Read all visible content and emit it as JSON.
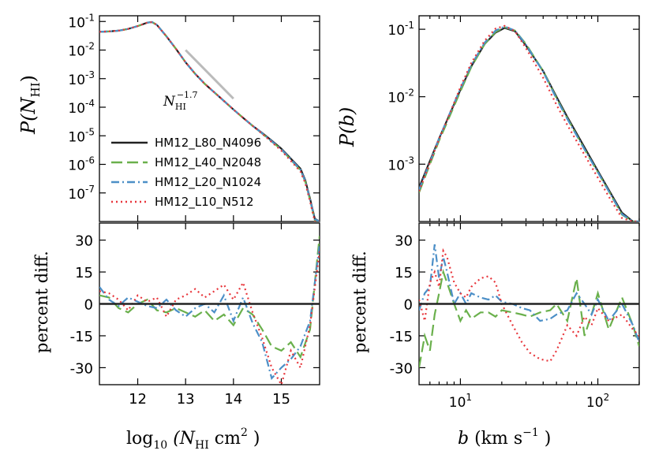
{
  "styles": {
    "colors": {
      "HM12_L80_N4096": "#222222",
      "HM12_L40_N2048": "#6ab04c",
      "HM12_L20_N1024": "#4c8fc7",
      "HM12_L10_N512": "#e8363c",
      "reference": "#bbbbbb"
    },
    "dashes": {
      "HM12_L80_N4096": "",
      "HM12_L40_N2048": "14,6",
      "HM12_L20_N1024": "10,4,2,4",
      "HM12_L10_N512": "2,4"
    }
  },
  "chart_data": [
    {
      "type": "line",
      "panel": "top-left",
      "ylabel": "P(N_HI)",
      "xlim": [
        11.2,
        15.8
      ],
      "ylim_log10": [
        -8,
        -0.8
      ],
      "yscale": "log",
      "yticks": [
        "10^-1",
        "10^-2",
        "10^-3",
        "10^-4",
        "10^-5",
        "10^-6",
        "10^-7"
      ],
      "annotation": "N_HI^-1.7",
      "legend": [
        "HM12_L80_N4096",
        "HM12_L40_N2048",
        "HM12_L20_N1024",
        "HM12_L10_N512"
      ],
      "legend_position": "lower-left",
      "x": [
        11.2,
        11.4,
        11.6,
        11.8,
        12.0,
        12.2,
        12.3,
        12.4,
        12.6,
        12.8,
        13.0,
        13.2,
        13.4,
        13.6,
        13.8,
        14.0,
        14.2,
        14.4,
        14.6,
        14.8,
        15.0,
        15.2,
        15.4,
        15.5,
        15.6,
        15.7,
        15.8
      ],
      "series": [
        {
          "name": "HM12_L80_N4096",
          "log10_values": [
            -1.36,
            -1.35,
            -1.32,
            -1.26,
            -1.16,
            -1.04,
            -1.02,
            -1.12,
            -1.52,
            -1.96,
            -2.43,
            -2.83,
            -3.18,
            -3.48,
            -3.78,
            -4.08,
            -4.37,
            -4.65,
            -4.9,
            -5.17,
            -5.45,
            -5.8,
            -6.15,
            -6.55,
            -7.2,
            -7.9,
            -8.0
          ]
        },
        {
          "name": "HM12_L40_N2048",
          "log10_values": [
            -1.36,
            -1.35,
            -1.32,
            -1.26,
            -1.16,
            -1.04,
            -1.02,
            -1.12,
            -1.52,
            -1.96,
            -2.43,
            -2.83,
            -3.18,
            -3.48,
            -3.78,
            -4.08,
            -4.37,
            -4.65,
            -4.92,
            -5.2,
            -5.48,
            -5.84,
            -6.2,
            -6.6,
            -7.25,
            -7.95,
            -8.0
          ]
        },
        {
          "name": "HM12_L20_N1024",
          "log10_values": [
            -1.36,
            -1.35,
            -1.32,
            -1.26,
            -1.16,
            -1.04,
            -1.02,
            -1.12,
            -1.52,
            -1.96,
            -2.43,
            -2.83,
            -3.18,
            -3.48,
            -3.78,
            -4.08,
            -4.37,
            -4.65,
            -4.91,
            -5.19,
            -5.47,
            -5.82,
            -6.18,
            -6.58,
            -7.22,
            -7.92,
            -8.0
          ]
        },
        {
          "name": "HM12_L10_N512",
          "log10_values": [
            -1.36,
            -1.35,
            -1.32,
            -1.26,
            -1.16,
            -1.04,
            -1.02,
            -1.12,
            -1.52,
            -1.96,
            -2.43,
            -2.83,
            -3.18,
            -3.48,
            -3.78,
            -4.08,
            -4.37,
            -4.65,
            -4.93,
            -5.22,
            -5.52,
            -5.88,
            -6.25,
            -6.65,
            -7.3,
            -8.0,
            -8.0
          ]
        }
      ],
      "reference_line": {
        "x": [
          13.0,
          14.0
        ],
        "log10_values": [
          -2.0,
          -3.7
        ]
      }
    },
    {
      "type": "line",
      "panel": "bottom-left",
      "xlabel": "log10 (N_HI cm^2 )",
      "ylabel": "percent diff.",
      "xlim": [
        11.2,
        15.8
      ],
      "ylim": [
        -38,
        38
      ],
      "xticks": [
        "12",
        "13",
        "14",
        "15"
      ],
      "yticks": [
        "30",
        "15",
        "0",
        "-15",
        "-30"
      ],
      "zero_line": true,
      "x": [
        11.2,
        11.4,
        11.6,
        11.8,
        12.0,
        12.2,
        12.4,
        12.6,
        12.8,
        13.0,
        13.2,
        13.4,
        13.6,
        13.8,
        14.0,
        14.2,
        14.4,
        14.6,
        14.8,
        15.0,
        15.2,
        15.4,
        15.6,
        15.8
      ],
      "series": [
        {
          "name": "HM12_L40_N2048",
          "values": [
            4,
            3,
            -2,
            -4,
            0,
            2,
            -3,
            -4,
            -2,
            -4,
            -6,
            -3,
            -8,
            -5,
            -10,
            -2,
            -5,
            -12,
            -20,
            -22,
            -18,
            -25,
            -12,
            32
          ]
        },
        {
          "name": "HM12_L20_N1024",
          "values": [
            8,
            2,
            -1,
            3,
            1,
            -1,
            -2,
            2,
            -3,
            -6,
            -2,
            0,
            -4,
            4,
            -8,
            3,
            -9,
            -18,
            -35,
            -30,
            -26,
            -20,
            -8,
            28
          ]
        },
        {
          "name": "HM12_L10_N512",
          "values": [
            6,
            5,
            2,
            -3,
            4,
            1,
            3,
            -6,
            2,
            4,
            7,
            3,
            6,
            9,
            2,
            10,
            -4,
            -16,
            -30,
            -38,
            -22,
            -30,
            -10,
            25
          ]
        }
      ]
    },
    {
      "type": "line",
      "panel": "top-right",
      "ylabel": "P(b)",
      "xscale": "log",
      "yscale": "log",
      "xlim": [
        5,
        200
      ],
      "ylim_log10": [
        -3.85,
        -0.8
      ],
      "yticks": [
        "10^-1",
        "10^-2",
        "10^-3"
      ],
      "b": [
        5,
        6,
        7,
        8,
        10,
        12,
        15,
        18,
        21,
        25,
        30,
        40,
        50,
        60,
        80,
        100,
        120,
        150,
        180,
        200
      ],
      "series": [
        {
          "name": "HM12_L80_N4096",
          "log10_values": [
            -3.35,
            -2.95,
            -2.62,
            -2.35,
            -1.9,
            -1.55,
            -1.22,
            -1.05,
            -0.98,
            -1.03,
            -1.24,
            -1.62,
            -2.0,
            -2.3,
            -2.75,
            -3.1,
            -3.38,
            -3.72,
            -3.85,
            -3.85
          ]
        },
        {
          "name": "HM12_L40_N2048",
          "log10_values": [
            -3.42,
            -3.0,
            -2.65,
            -2.38,
            -1.92,
            -1.56,
            -1.22,
            -1.04,
            -0.97,
            -1.02,
            -1.22,
            -1.62,
            -2.02,
            -2.32,
            -2.78,
            -3.12,
            -3.4,
            -3.75,
            -3.85,
            -3.85
          ]
        },
        {
          "name": "HM12_L20_N1024",
          "log10_values": [
            -3.38,
            -2.97,
            -2.62,
            -2.34,
            -1.88,
            -1.53,
            -1.2,
            -1.02,
            -0.96,
            -1.02,
            -1.23,
            -1.63,
            -2.03,
            -2.33,
            -2.78,
            -3.12,
            -3.4,
            -3.74,
            -3.85,
            -3.85
          ]
        },
        {
          "name": "HM12_L10_N512",
          "log10_values": [
            -3.4,
            -2.98,
            -2.63,
            -2.35,
            -1.86,
            -1.5,
            -1.17,
            -0.99,
            -0.95,
            -1.03,
            -1.28,
            -1.72,
            -2.12,
            -2.42,
            -2.86,
            -3.2,
            -3.48,
            -3.8,
            -3.85,
            -3.85
          ]
        }
      ]
    },
    {
      "type": "line",
      "panel": "bottom-right",
      "xlabel": "b  (km s^-1 )",
      "ylabel": "percent diff.",
      "xscale": "log",
      "xlim": [
        5,
        200
      ],
      "ylim": [
        -38,
        38
      ],
      "xticks": [
        "10^1",
        "10^2"
      ],
      "yticks": [
        "30",
        "15",
        "0",
        "-15",
        "-30"
      ],
      "zero_line": true,
      "b": [
        5,
        5.5,
        6,
        6.5,
        7,
        7.5,
        8,
        9,
        10,
        11,
        12,
        14,
        16,
        18,
        20,
        24,
        28,
        32,
        38,
        45,
        50,
        60,
        70,
        80,
        90,
        100,
        120,
        150,
        180,
        200
      ],
      "series": [
        {
          "name": "HM12_L40_N2048",
          "values": [
            -30,
            -15,
            -22,
            -5,
            5,
            15,
            10,
            0,
            -8,
            -3,
            -7,
            -4,
            -4,
            -6,
            -3,
            -4,
            -5,
            -6,
            -4,
            -3,
            0,
            -8,
            12,
            -15,
            -5,
            5,
            -12,
            3,
            -10,
            -20
          ]
        },
        {
          "name": "HM12_L20_N1024",
          "values": [
            -3,
            5,
            8,
            28,
            12,
            22,
            15,
            0,
            5,
            0,
            5,
            3,
            2,
            4,
            1,
            0,
            -2,
            -3,
            -8,
            -7,
            -5,
            -3,
            5,
            0,
            -5,
            2,
            -8,
            0,
            -10,
            -18
          ]
        },
        {
          "name": "HM12_L10_N512",
          "values": [
            2,
            -8,
            10,
            15,
            8,
            25,
            22,
            10,
            5,
            3,
            8,
            12,
            13,
            10,
            0,
            -10,
            -18,
            -23,
            -26,
            -27,
            -22,
            -10,
            -15,
            -6,
            -10,
            -2,
            -8,
            -5,
            -12,
            -15
          ]
        }
      ]
    }
  ],
  "text": {
    "top_left_ylabel": "P(N",
    "top_left_ylabel_sub": "HI",
    "top_left_ylabel_close": ")",
    "annotation_base": "N",
    "annotation_sub": "HI",
    "annotation_sup": "−1.7",
    "bottom_left_ylabel": "percent diff.",
    "bottom_right_ylabel": "percent diff.",
    "top_right_ylabel": "P(b)",
    "xlabel_left_a": "log",
    "xlabel_left_sub": "10",
    "xlabel_left_b": " (N",
    "xlabel_left_sub2": "HI",
    "xlabel_left_c": " cm",
    "xlabel_left_sup": "2",
    "xlabel_left_d": " )",
    "xlabel_right_a": "b",
    "xlabel_right_b": "  (km s",
    "xlabel_right_sup": "−1",
    "xlabel_right_c": " )",
    "legend_1": "HM12_L80_N4096",
    "legend_2": "HM12_L40_N2048",
    "legend_3": "HM12_L20_N1024",
    "legend_4": "HM12_L10_N512"
  }
}
